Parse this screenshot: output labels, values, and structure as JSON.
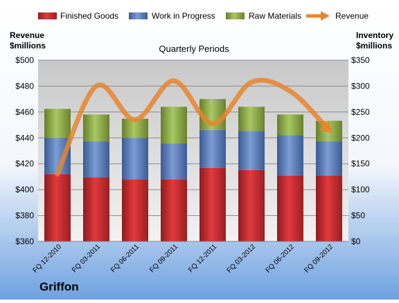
{
  "chart_data": {
    "type": "bar",
    "title": "Quarterly Periods",
    "company": "Griffon",
    "left_axis_label": [
      "Revenue",
      "$millions"
    ],
    "right_axis_label": [
      "Inventory",
      "$millions"
    ],
    "categories": [
      "FQ 12-2010",
      "FQ 03-2011",
      "FQ 06-2011",
      "FQ 09-2011",
      "FQ 12-2011",
      "FQ 03-2012",
      "FQ 06-2012",
      "FQ 09-2012"
    ],
    "stacked": true,
    "left_axis": {
      "min": 360,
      "max": 500,
      "step": 20,
      "tick_labels": [
        "$360",
        "$380",
        "$400",
        "$420",
        "$440",
        "$460",
        "$480",
        "$500"
      ]
    },
    "right_axis": {
      "min": 0,
      "max": 350,
      "step": 50,
      "tick_labels": [
        "$0",
        "$50",
        "$100",
        "$150",
        "$200",
        "$250",
        "$300",
        "$350"
      ]
    },
    "series": [
      {
        "name": "Finished Goods",
        "axis": "right",
        "color": "#c0282d",
        "values": [
          130,
          124,
          120,
          120,
          142,
          138,
          127,
          127
        ]
      },
      {
        "name": "Work in Progress",
        "axis": "right",
        "color": "#4f73b6",
        "values": [
          70,
          69,
          80,
          69,
          73,
          75,
          78,
          66
        ]
      },
      {
        "name": "Raw Materials",
        "axis": "right",
        "color": "#8fad45",
        "values": [
          56,
          52,
          37,
          71,
          60,
          47,
          40,
          40
        ]
      }
    ],
    "line_series": {
      "name": "Revenue",
      "axis": "left",
      "type": "smooth-arrow",
      "color": "#e8852e",
      "values": [
        412,
        480,
        454,
        484,
        451,
        483,
        476,
        446
      ]
    },
    "legend": {
      "position": "top",
      "entries": [
        "Finished Goods",
        "Work in Progress",
        "Raw Materials",
        "Revenue"
      ]
    },
    "grid": true
  }
}
